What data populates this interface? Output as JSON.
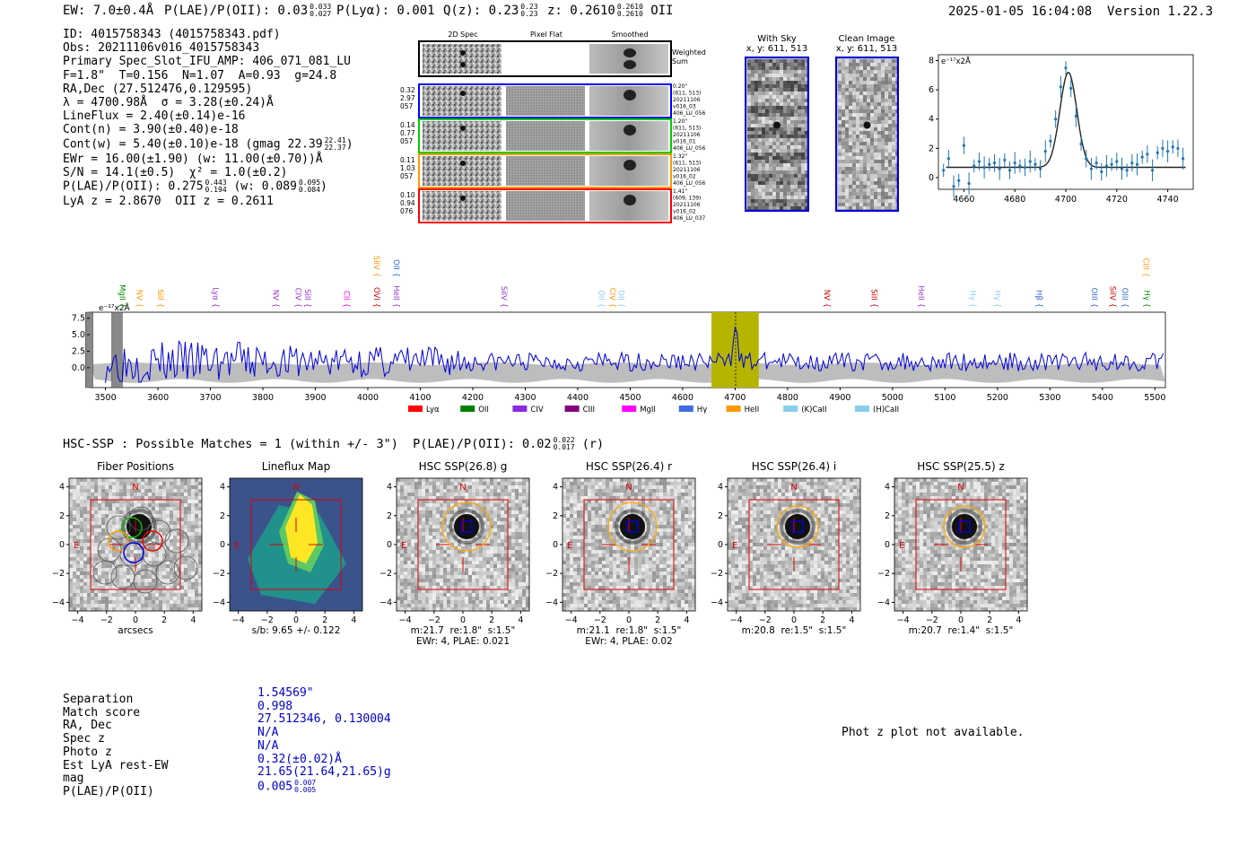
{
  "header": {
    "ew_text": "EW: 7.0±0.4Å",
    "plae_text": "P(LAE)/P(OII): 0.03",
    "plae_hi": "0.033",
    "plae_lo": "0.027",
    "plya_text": "P(Lyα): 0.001",
    "qz_text": "Q(z): 0.23",
    "qz_hi": "0.23",
    "qz_lo": "0.23",
    "z_text": "z: 0.2610",
    "z_hi": "0.2610",
    "z_lo": "0.2610",
    "z_line": "OII",
    "timestamp": "2025-01-05 16:04:08",
    "version": "Version 1.22.3"
  },
  "info": {
    "id": "ID: 4015758343 (4015758343.pdf)",
    "obs": "Obs: 20211106v016_4015758343",
    "primary": "Primary Spec_Slot_IFU_AMP: 406_071_081_LU",
    "fstats": "F=1.8\"  T=0.156  N=1.07  A=0.93  g=24.8",
    "radec": "RA,Dec (27.512476,0.129595)",
    "lambda": "λ = 4700.98Å  σ = 3.28(±0.24)Å",
    "lineflux": "LineFlux = 2.40(±0.14)e-16",
    "contn": "Cont(n) = 3.90(±0.40)e-18",
    "contw": "Cont(w) = 5.40(±0.10)e-18 (gmag 22.39",
    "contw_hi": "22.41",
    "contw_lo": "22.37",
    "ewr": "EWr = 16.00(±1.90) (w: 11.00(±0.70))Å",
    "sn": "S/N = 14.1(±0.5)  χ² = 1.0(±0.2)",
    "plae": "P(LAE)/P(OII): 0.275",
    "plae_hi": "0.443",
    "plae_lo": "0.194",
    "plae_w": "(w: 0.089",
    "plae_w_hi": "0.095",
    "plae_w_lo": "0.084",
    "lyaz": "LyA z = 2.8670  OII z = 0.2611"
  },
  "cutouts": {
    "col_headers": [
      "2D Spec",
      "Pixel Flat",
      "Smoothed"
    ],
    "weighted_label": "Weighted Sum",
    "rows": [
      {
        "left": [
          "0.32",
          "2.97",
          "057"
        ],
        "right": [
          "0.20\"",
          "(611, 513)",
          "20211106",
          "v016_03",
          "406_LU_056"
        ],
        "color": "#0000ff"
      },
      {
        "left": [
          "0.14",
          "0.77",
          "057"
        ],
        "right": [
          "1.20\"",
          "(611, 513)",
          "20211106",
          "v016_01",
          "406_LU_056"
        ],
        "color": "#00cc00"
      },
      {
        "left": [
          "0.11",
          "1.03",
          "057"
        ],
        "right": [
          "1.32\"",
          "(611, 513)",
          "20211106",
          "v016_02",
          "406_LU_056"
        ],
        "color": "#ff9900"
      },
      {
        "left": [
          "0.10",
          "0.94",
          "076"
        ],
        "right": [
          "1.41\"",
          "(609, 139)",
          "20211106",
          "v016_02",
          "406_LU_037"
        ],
        "color": "#ff0000"
      }
    ],
    "with_sky": "With Sky",
    "with_sky_xy": "x, y: 611, 513",
    "clean_image": "Clean Image",
    "clean_image_xy": "x, y: 611, 513"
  },
  "zoom_chart_data": {
    "type": "scatter",
    "ylabel": "e⁻¹⁷x2Å",
    "xlim": [
      4650,
      4750
    ],
    "ylim": [
      -0.8,
      8.4
    ],
    "xticks": [
      4660,
      4680,
      4700,
      4720,
      4740
    ],
    "yticks": [
      0,
      2,
      4,
      6,
      8
    ],
    "x": [
      4652,
      4654,
      4656,
      4658,
      4660,
      4662,
      4664,
      4666,
      4668,
      4670,
      4672,
      4674,
      4676,
      4678,
      4680,
      4682,
      4684,
      4686,
      4688,
      4690,
      4692,
      4694,
      4696,
      4698,
      4700,
      4702,
      4704,
      4706,
      4708,
      4710,
      4712,
      4714,
      4716,
      4718,
      4720,
      4722,
      4724,
      4726,
      4728,
      4730,
      4732,
      4734,
      4736,
      4738,
      4740,
      4742,
      4744,
      4746
    ],
    "y": [
      0.5,
      1.3,
      -0.6,
      -0.2,
      2.2,
      -0.4,
      0.8,
      1.1,
      0.7,
      0.9,
      1.0,
      0.6,
      1.2,
      0.5,
      1.0,
      0.8,
      0.7,
      1.1,
      0.9,
      0.6,
      1.8,
      2.5,
      4.0,
      6.2,
      7.5,
      6.1,
      4.2,
      2.3,
      1.3,
      0.6,
      1.0,
      0.4,
      0.8,
      0.9,
      1.1,
      0.6,
      0.5,
      1.0,
      0.9,
      1.4,
      1.6,
      0.5,
      1.7,
      2.0,
      1.8,
      2.1,
      2.0,
      1.3
    ],
    "fit_peak": 6.5,
    "fit_center": 4701,
    "fit_sigma": 3.3,
    "fit_cont": 0.7
  },
  "chart_data": {
    "type": "line",
    "xlabel": "",
    "ylabel": "e⁻¹⁷x2Å",
    "xlim": [
      3470,
      5520
    ],
    "ylim": [
      -3,
      8.4
    ],
    "xticks": [
      3500,
      3600,
      3700,
      3800,
      3900,
      4000,
      4100,
      4200,
      4300,
      4400,
      4500,
      4600,
      4700,
      4800,
      4900,
      5000,
      5100,
      5200,
      5300,
      5400,
      5500
    ],
    "yticks": [
      0.0,
      2.5,
      5.0,
      7.5
    ],
    "ytick_labels": [
      "0.0",
      "2.5",
      "5.0",
      "7.5"
    ],
    "highlight_range": [
      4655,
      4745
    ],
    "edge_bands": [
      [
        3512,
        3532
      ],
      [
        3462,
        3476
      ]
    ],
    "peak_wavelength": 4701,
    "peak_value": 7.5,
    "line_marks": [
      {
        "label": "MgII",
        "wl": 3527,
        "color": "#008800",
        "row": 1
      },
      {
        "label": "NV",
        "wl": 3560,
        "color": "#ff9900",
        "row": 1
      },
      {
        "label": "SiII",
        "wl": 3600,
        "color": "#ff9900",
        "row": 1
      },
      {
        "label": "Lyα",
        "wl": 3705,
        "color": "#9933cc",
        "row": 1
      },
      {
        "label": "NV",
        "wl": 3820,
        "color": "#9933cc",
        "row": 1
      },
      {
        "label": "CIV",
        "wl": 3862,
        "color": "#9933cc",
        "row": 1
      },
      {
        "label": "SiII",
        "wl": 3880,
        "color": "#9933cc",
        "row": 1
      },
      {
        "label": "CII",
        "wl": 3955,
        "color": "#ff00ff",
        "row": 1
      },
      {
        "label": "SiIV",
        "wl": 4012,
        "color": "#ff9900",
        "row": 0
      },
      {
        "label": "OVI",
        "wl": 4012,
        "color": "#cc0000",
        "row": 1
      },
      {
        "label": "OII",
        "wl": 4050,
        "color": "#3366cc",
        "row": 0
      },
      {
        "label": "HeII",
        "wl": 4050,
        "color": "#9933cc",
        "row": 1
      },
      {
        "label": "SiIV",
        "wl": 4255,
        "color": "#9933cc",
        "row": 1
      },
      {
        "label": "OII",
        "wl": 4440,
        "color": "#88ccff",
        "row": 1
      },
      {
        "label": "CIV",
        "wl": 4462,
        "color": "#ff9900",
        "row": 1
      },
      {
        "label": "OII",
        "wl": 4478,
        "color": "#88ccff",
        "row": 1
      },
      {
        "label": "NV",
        "wl": 4870,
        "color": "#cc0000",
        "row": 1
      },
      {
        "label": "SiII",
        "wl": 4960,
        "color": "#cc0000",
        "row": 1
      },
      {
        "label": "HeII",
        "wl": 5050,
        "color": "#9933cc",
        "row": 1
      },
      {
        "label": "Hγ",
        "wl": 5148,
        "color": "#88ccff",
        "row": 1
      },
      {
        "label": "Hγ",
        "wl": 5195,
        "color": "#88ccff",
        "row": 1
      },
      {
        "label": "Hβ",
        "wl": 5275,
        "color": "#3366cc",
        "row": 1
      },
      {
        "label": "OIII",
        "wl": 5380,
        "color": "#3366cc",
        "row": 1
      },
      {
        "label": "SiIV",
        "wl": 5415,
        "color": "#cc0000",
        "row": 1
      },
      {
        "label": "OIII",
        "wl": 5438,
        "color": "#3366cc",
        "row": 1
      },
      {
        "label": "CIII",
        "wl": 5478,
        "color": "#ff9900",
        "row": 0
      },
      {
        "label": "Hγ",
        "wl": 5480,
        "color": "#008800",
        "row": 1
      }
    ],
    "legend": [
      {
        "label": "Lyα",
        "color": "#ff0000"
      },
      {
        "label": "OII",
        "color": "#008000"
      },
      {
        "label": "CIV",
        "color": "#8a2be2"
      },
      {
        "label": "CIII",
        "color": "#800080"
      },
      {
        "label": "MgII",
        "color": "#ff00ff"
      },
      {
        "label": "Hγ",
        "color": "#4169e1"
      },
      {
        "label": "HeII",
        "color": "#ff9900"
      },
      {
        "label": "(K)CaII",
        "color": "#87ceeb"
      },
      {
        "label": "(H)CaII",
        "color": "#87ceeb"
      }
    ]
  },
  "hsc": {
    "headline": "HSC-SSP : Possible Matches = 1 (within +/- 3\")  P(LAE)/P(OII): 0.02",
    "headline_hi": "0.022",
    "headline_lo": "0.017",
    "headline_band": "(r)",
    "axis_ticks": [
      "4",
      "2",
      "0",
      "−2",
      "−4"
    ],
    "xaxis_ticks": [
      "−4",
      "−2",
      "0",
      "2",
      "4"
    ],
    "panels": [
      {
        "title": "Fiber Positions",
        "caption": "arcsecs",
        "caption2": ""
      },
      {
        "title": "Lineflux Map",
        "caption": "s/b: 9.65 +/- 0.122",
        "caption2": ""
      },
      {
        "title": "HSC SSP(26.8) g",
        "caption": "m:21.7  re:1.8\"  s:1.5\"",
        "caption2": "EWr: 4, PLAE: 0.021"
      },
      {
        "title": "HSC SSP(26.4) r",
        "caption": "m:21.1  re:1.8\"  s:1.5\"",
        "caption2": "EWr: 4, PLAE: 0.02"
      },
      {
        "title": "HSC SSP(26.4) i",
        "caption": "m:20.8  re:1.5\"  s:1.5\"",
        "caption2": ""
      },
      {
        "title": "HSC SSP(25.5) z",
        "caption": "m:20.7  re:1.4\"  s:1.5\"",
        "caption2": ""
      }
    ],
    "north": "N",
    "east": "E"
  },
  "match": {
    "labels": [
      "Separation",
      "Match score",
      "RA, Dec",
      "Spec z",
      "Photo z",
      "Est LyA rest-EW",
      "mag",
      "P(LAE)/P(OII)"
    ],
    "values": [
      "1.54569\"",
      "0.998",
      "27.512346, 0.130004",
      "N/A",
      "N/A",
      "0.32(±0.02)Å",
      "21.65(21.64,21.65)g",
      "0.005"
    ],
    "plae_hi": "0.007",
    "plae_lo": "0.005",
    "phot_z_note": "Phot z plot not available."
  }
}
